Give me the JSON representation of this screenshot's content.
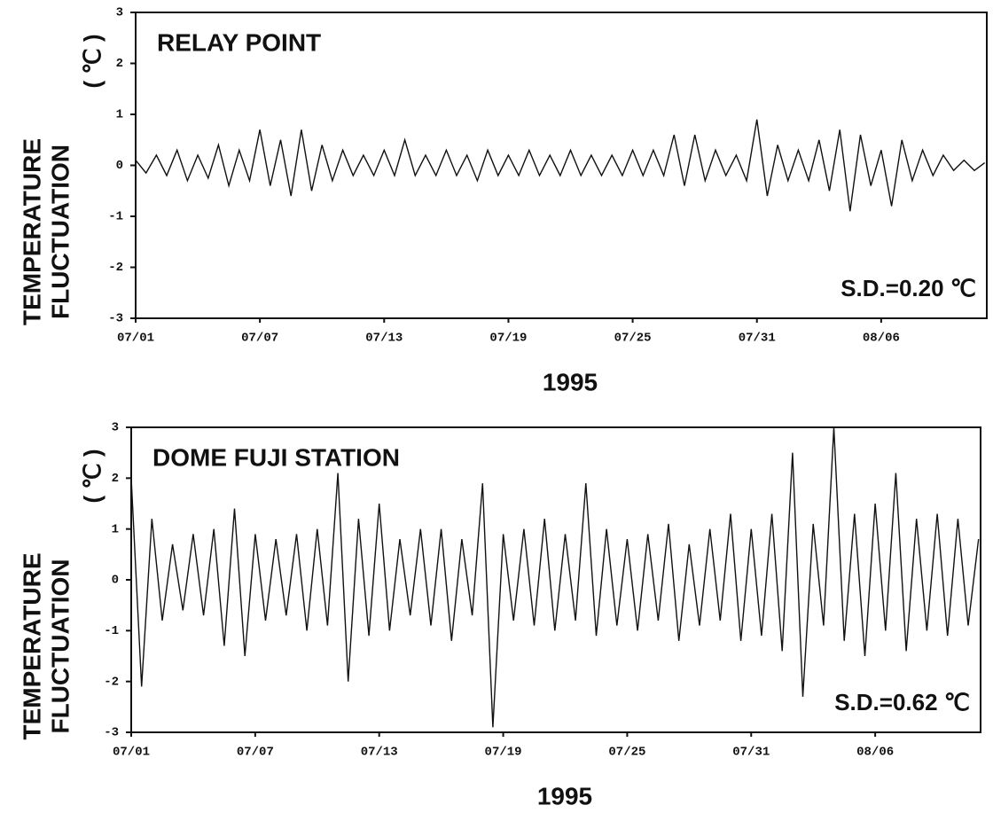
{
  "chart_data": [
    {
      "type": "line",
      "title": "RELAY POINT",
      "annotation": "S.D.=0.20 ℃",
      "xlabel": "1995",
      "ylabel": [
        "TEMPERATURE",
        "FLUCTUATION"
      ],
      "yunit": "( ℃ )",
      "color": "#111111",
      "ylim": [
        -3,
        3
      ],
      "yticks": [
        -3,
        -2,
        -1,
        0,
        1,
        2,
        3
      ],
      "xlim": [
        0,
        41.1
      ],
      "xticks": [
        {
          "value": 0,
          "label": "07/01"
        },
        {
          "value": 6,
          "label": "07/07"
        },
        {
          "value": 12,
          "label": "07/13"
        },
        {
          "value": 18,
          "label": "07/19"
        },
        {
          "value": 24,
          "label": "07/25"
        },
        {
          "value": 30,
          "label": "07/31"
        },
        {
          "value": 36,
          "label": "08/06"
        }
      ],
      "x": [
        0,
        0.5,
        1,
        1.5,
        2,
        2.5,
        3,
        3.5,
        4,
        4.5,
        5,
        5.5,
        6,
        6.5,
        7,
        7.5,
        8,
        8.5,
        9,
        9.5,
        10,
        10.5,
        11,
        11.5,
        12,
        12.5,
        13,
        13.5,
        14,
        14.5,
        15,
        15.5,
        16,
        16.5,
        17,
        17.5,
        18,
        18.5,
        19,
        19.5,
        20,
        20.5,
        21,
        21.5,
        22,
        22.5,
        23,
        23.5,
        24,
        24.5,
        25,
        25.5,
        26,
        26.5,
        27,
        27.5,
        28,
        28.5,
        29,
        29.5,
        30,
        30.5,
        31,
        31.5,
        32,
        32.5,
        33,
        33.5,
        34,
        34.5,
        35,
        35.5,
        36,
        36.5,
        37,
        37.5,
        38,
        38.5,
        39,
        39.5,
        40,
        40.5,
        41
      ],
      "values": [
        0.1,
        -0.15,
        0.2,
        -0.2,
        0.3,
        -0.3,
        0.2,
        -0.25,
        0.4,
        -0.4,
        0.3,
        -0.3,
        0.7,
        -0.4,
        0.5,
        -0.6,
        0.7,
        -0.5,
        0.4,
        -0.3,
        0.3,
        -0.2,
        0.2,
        -0.2,
        0.3,
        -0.2,
        0.5,
        -0.2,
        0.2,
        -0.2,
        0.3,
        -0.2,
        0.2,
        -0.3,
        0.3,
        -0.2,
        0.2,
        -0.2,
        0.3,
        -0.2,
        0.2,
        -0.2,
        0.3,
        -0.2,
        0.2,
        -0.2,
        0.2,
        -0.2,
        0.3,
        -0.2,
        0.3,
        -0.2,
        0.6,
        -0.4,
        0.6,
        -0.3,
        0.3,
        -0.2,
        0.2,
        -0.3,
        0.9,
        -0.6,
        0.4,
        -0.3,
        0.3,
        -0.3,
        0.5,
        -0.5,
        0.7,
        -0.9,
        0.6,
        -0.4,
        0.3,
        -0.8,
        0.5,
        -0.3,
        0.3,
        -0.2,
        0.2,
        -0.1,
        0.1,
        -0.1,
        0.05
      ]
    },
    {
      "type": "line",
      "title": "DOME FUJI STATION",
      "annotation": "S.D.=0.62 ℃",
      "xlabel": "1995",
      "ylabel": [
        "TEMPERATURE",
        "FLUCTUATION"
      ],
      "yunit": "( ℃ )",
      "color": "#111111",
      "ylim": [
        -3,
        3
      ],
      "yticks": [
        -3,
        -2,
        -1,
        0,
        1,
        2,
        3
      ],
      "xlim": [
        0,
        41.1
      ],
      "xticks": [
        {
          "value": 0,
          "label": "07/01"
        },
        {
          "value": 6,
          "label": "07/07"
        },
        {
          "value": 12,
          "label": "07/13"
        },
        {
          "value": 18,
          "label": "07/19"
        },
        {
          "value": 24,
          "label": "07/25"
        },
        {
          "value": 30,
          "label": "07/31"
        },
        {
          "value": 36,
          "label": "08/06"
        }
      ],
      "x": [
        0,
        0.5,
        1,
        1.5,
        2,
        2.5,
        3,
        3.5,
        4,
        4.5,
        5,
        5.5,
        6,
        6.5,
        7,
        7.5,
        8,
        8.5,
        9,
        9.5,
        10,
        10.5,
        11,
        11.5,
        12,
        12.5,
        13,
        13.5,
        14,
        14.5,
        15,
        15.5,
        16,
        16.5,
        17,
        17.5,
        18,
        18.5,
        19,
        19.5,
        20,
        20.5,
        21,
        21.5,
        22,
        22.5,
        23,
        23.5,
        24,
        24.5,
        25,
        25.5,
        26,
        26.5,
        27,
        27.5,
        28,
        28.5,
        29,
        29.5,
        30,
        30.5,
        31,
        31.5,
        32,
        32.5,
        33,
        33.5,
        34,
        34.5,
        35,
        35.5,
        36,
        36.5,
        37,
        37.5,
        38,
        38.5,
        39,
        39.5,
        40,
        40.5,
        41
      ],
      "values": [
        2.0,
        -2.1,
        1.2,
        -0.8,
        0.7,
        -0.6,
        0.9,
        -0.7,
        1.0,
        -1.3,
        1.4,
        -1.5,
        0.9,
        -0.8,
        0.8,
        -0.7,
        0.9,
        -1.0,
        1.0,
        -0.9,
        2.1,
        -2.0,
        1.2,
        -1.1,
        1.5,
        -1.0,
        0.8,
        -0.7,
        1.0,
        -0.9,
        1.0,
        -1.2,
        0.8,
        -0.7,
        1.9,
        -2.9,
        0.9,
        -0.8,
        1.0,
        -0.9,
        1.2,
        -1.0,
        0.9,
        -0.8,
        1.9,
        -1.1,
        1.0,
        -0.9,
        0.8,
        -1.0,
        0.9,
        -0.8,
        1.1,
        -1.2,
        0.7,
        -0.9,
        1.0,
        -0.8,
        1.3,
        -1.2,
        1.0,
        -1.1,
        1.3,
        -1.4,
        2.5,
        -2.3,
        1.1,
        -0.9,
        3.0,
        -1.2,
        1.3,
        -1.5,
        1.5,
        -1.0,
        2.1,
        -1.4,
        1.2,
        -1.0,
        1.3,
        -1.1,
        1.2,
        -0.9,
        0.8
      ]
    }
  ]
}
